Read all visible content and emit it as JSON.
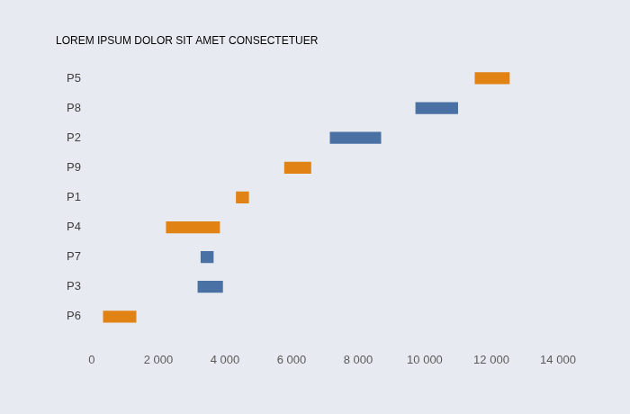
{
  "chart_data": {
    "type": "bar",
    "orientation": "horizontal",
    "title": "LOREM IPSUM DOLOR SIT AMET CONSECTETUER",
    "categories": [
      "P5",
      "P8",
      "P2",
      "P9",
      "P1",
      "P4",
      "P7",
      "P3",
      "P6"
    ],
    "values": [
      [
        11500,
        12550
      ],
      [
        9720,
        11000
      ],
      [
        7150,
        8690
      ],
      [
        5780,
        6590
      ],
      [
        4330,
        4720
      ],
      [
        2230,
        3850
      ],
      [
        3270,
        3660
      ],
      [
        3180,
        3940
      ],
      [
        340,
        1340
      ]
    ],
    "colors": [
      "#e08214",
      "#4a71a3",
      "#4a71a3",
      "#e08214",
      "#e08214",
      "#e08214",
      "#4a71a3",
      "#4a71a3",
      "#e08214"
    ],
    "xlim": [
      0,
      14000
    ],
    "xticks": [
      0,
      {
        "value": 2000,
        "label": "2 000"
      },
      {
        "value": 4000,
        "label": "4 000"
      },
      {
        "value": 6000,
        "label": "6 000"
      },
      {
        "value": 8000,
        "label": "8 000"
      },
      {
        "value": 10000,
        "label": "10 000"
      },
      {
        "value": 12000,
        "label": "12 000"
      },
      {
        "value": 14000,
        "label": "14 000"
      }
    ],
    "grid": false
  }
}
